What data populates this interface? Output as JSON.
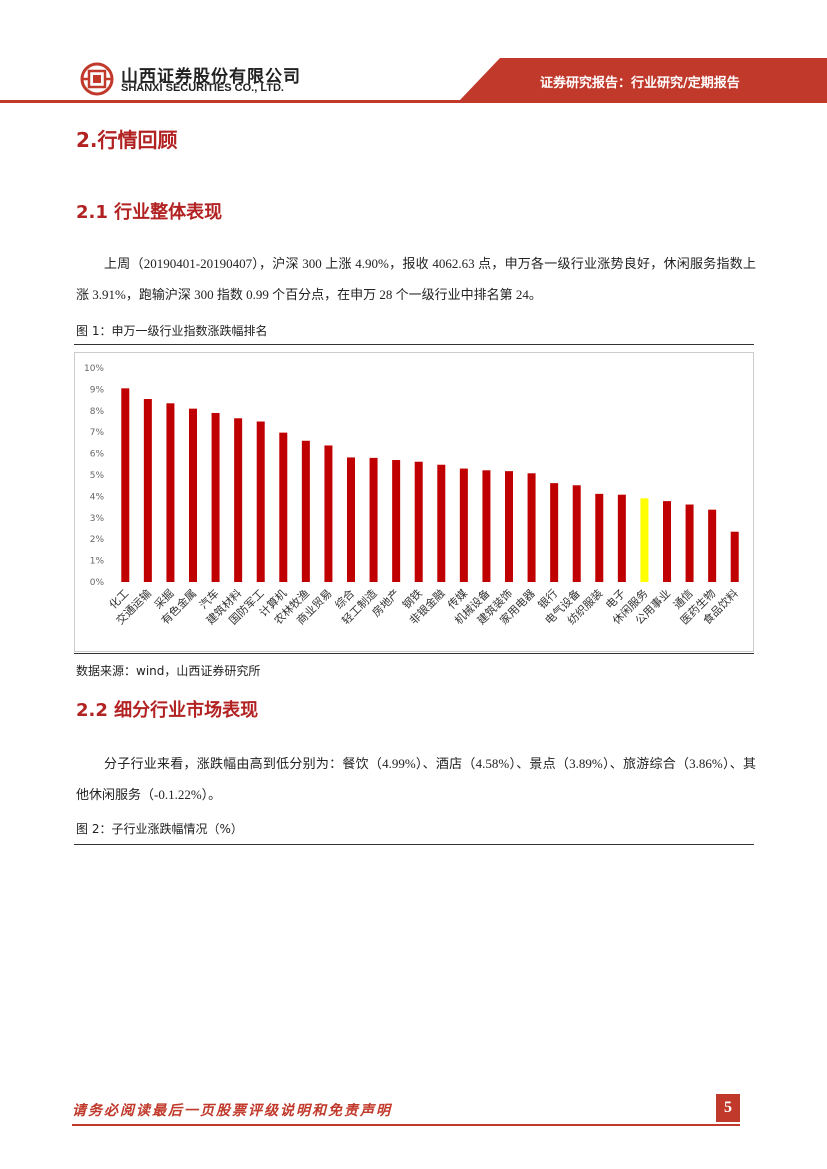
{
  "header": {
    "company_cn": "山西证券股份有限公司",
    "company_en": "SHANXI SECURITIES CO., LTD.",
    "report_type": "证券研究报告：行业研究/定期报告",
    "brand_color": "#c0392b"
  },
  "section_main": {
    "title": "2.行情回顾"
  },
  "section_1": {
    "title": "2.1 行业整体表现",
    "paragraph": "上周（20190401-20190407），沪深 300 上涨 4.90%，报收 4062.63 点，申万各一级行业涨势良好，休闲服务指数上涨 3.91%，跑输沪深 300 指数 0.99 个百分点，在申万 28 个一级行业中排名第 24。",
    "figure_title": "图 1：申万一级行业指数涨跌幅排名",
    "source": "数据来源：wind，山西证券研究所"
  },
  "section_2": {
    "title": "2.2 细分行业市场表现",
    "paragraph": "分子行业来看，涨跌幅由高到低分别为：餐饮（4.99%）、酒店（4.58%）、景点（3.89%）、旅游综合（3.86%）、其他休闲服务（-0.1.22%）。",
    "figure_title": "图 2：子行业涨跌幅情况（%）"
  },
  "footer": {
    "disclaimer": "请务必阅读最后一页股票评级说明和免责声明",
    "page_number": "5"
  },
  "chart_data": {
    "type": "bar",
    "title": "",
    "xlabel": "",
    "ylabel": "",
    "ylim": [
      0,
      10
    ],
    "yticks": [
      "0%",
      "1%",
      "2%",
      "3%",
      "4%",
      "5%",
      "6%",
      "7%",
      "8%",
      "9%",
      "10%"
    ],
    "grid": false,
    "bar_color": "#c00000",
    "highlight_color": "#ffff00",
    "highlight_category": "休闲服务",
    "categories": [
      "化工",
      "交通运输",
      "采掘",
      "有色金属",
      "汽车",
      "建筑材料",
      "国防军工",
      "计算机",
      "农林牧渔",
      "商业贸易",
      "综合",
      "轻工制造",
      "房地产",
      "钢铁",
      "非银金融",
      "传媒",
      "机械设备",
      "建筑装饰",
      "家用电器",
      "银行",
      "电气设备",
      "纺织服装",
      "电子",
      "休闲服务",
      "公用事业",
      "通信",
      "医药生物",
      "食品饮料"
    ],
    "values": [
      9.05,
      8.55,
      8.35,
      8.1,
      7.9,
      7.65,
      7.5,
      6.98,
      6.6,
      6.38,
      5.82,
      5.8,
      5.7,
      5.62,
      5.48,
      5.3,
      5.22,
      5.18,
      5.08,
      4.62,
      4.52,
      4.12,
      4.08,
      3.91,
      3.78,
      3.62,
      3.38,
      2.35
    ]
  }
}
